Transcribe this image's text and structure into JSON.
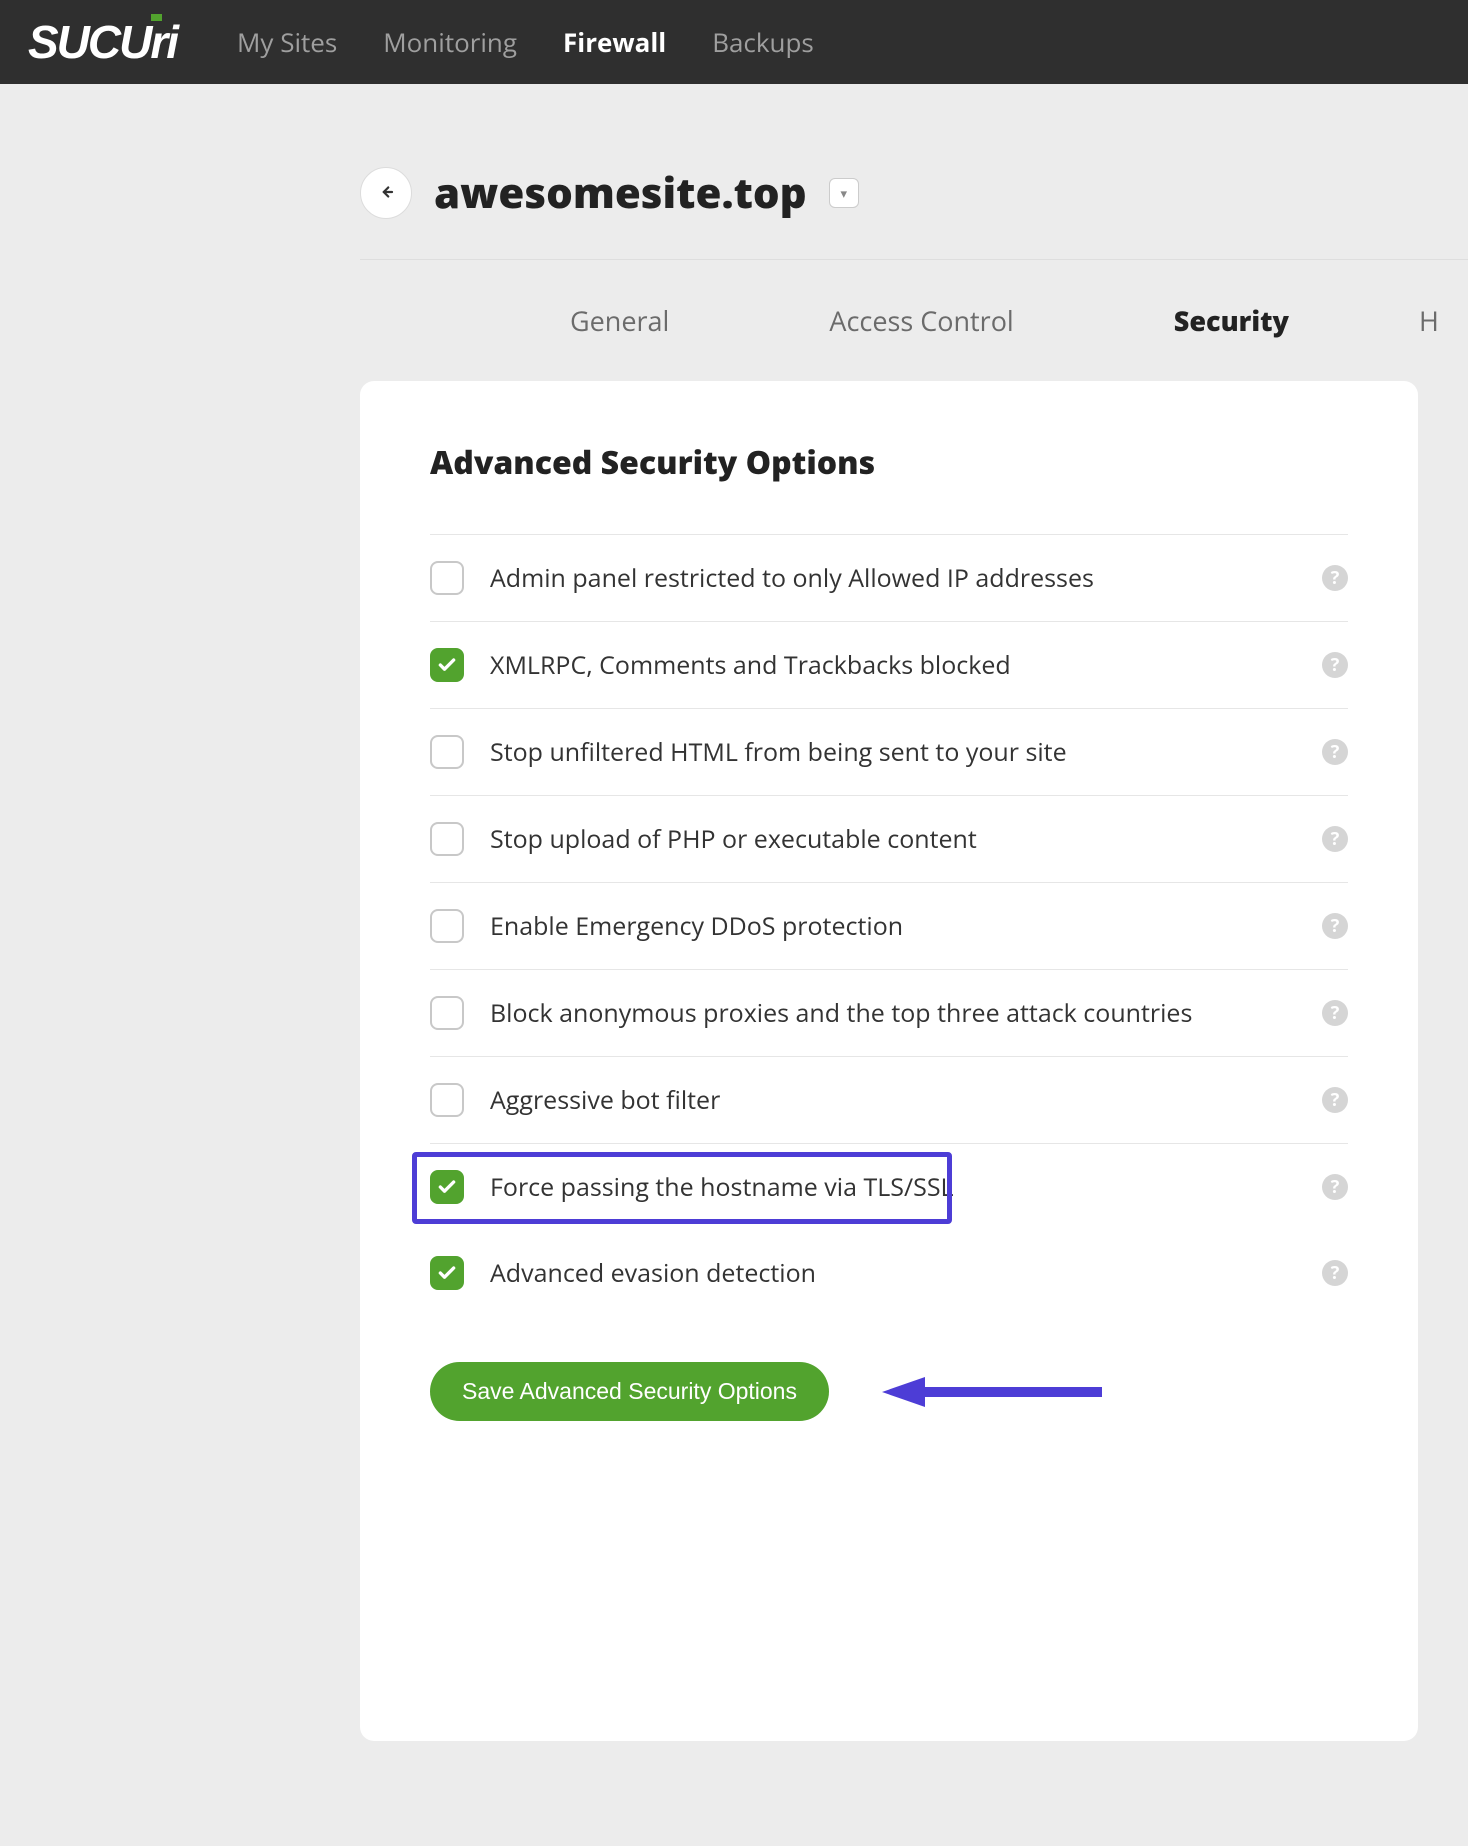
{
  "colors": {
    "brand_green": "#52a32e",
    "nav_bg": "#2f2f2f",
    "page_bg": "#ececec",
    "card_bg": "#ffffff",
    "text_primary": "#222222",
    "text_muted": "#6b6b6b",
    "annotation": "#4d3dd6",
    "help_icon_bg": "#d5d5d5"
  },
  "logo_text": "SUCUTI",
  "nav": {
    "items": [
      {
        "label": "My Sites",
        "active": false
      },
      {
        "label": "Monitoring",
        "active": false
      },
      {
        "label": "Firewall",
        "active": true
      },
      {
        "label": "Backups",
        "active": false
      }
    ]
  },
  "site": {
    "name": "awesomesite.top"
  },
  "subtabs": [
    {
      "label": "General",
      "active": false
    },
    {
      "label": "Access Control",
      "active": false
    },
    {
      "label": "Security",
      "active": true
    },
    {
      "label": "H",
      "active": false
    }
  ],
  "card": {
    "title": "Advanced Security Options",
    "options": [
      {
        "label": "Admin panel restricted to only Allowed IP addresses",
        "checked": false,
        "highlighted": false
      },
      {
        "label": "XMLRPC, Comments and Trackbacks blocked",
        "checked": true,
        "highlighted": false
      },
      {
        "label": "Stop unfiltered HTML from being sent to your site",
        "checked": false,
        "highlighted": false
      },
      {
        "label": "Stop upload of PHP or executable content",
        "checked": false,
        "highlighted": false
      },
      {
        "label": "Enable Emergency DDoS protection",
        "checked": false,
        "highlighted": false
      },
      {
        "label": "Block anonymous proxies and the top three attack countries",
        "checked": false,
        "highlighted": false
      },
      {
        "label": "Aggressive bot filter",
        "checked": false,
        "highlighted": false
      },
      {
        "label": "Force passing the hostname via TLS/SSL",
        "checked": true,
        "highlighted": true
      },
      {
        "label": "Advanced evasion detection",
        "checked": true,
        "highlighted": false
      }
    ],
    "save_label": "Save Advanced Security Options"
  }
}
